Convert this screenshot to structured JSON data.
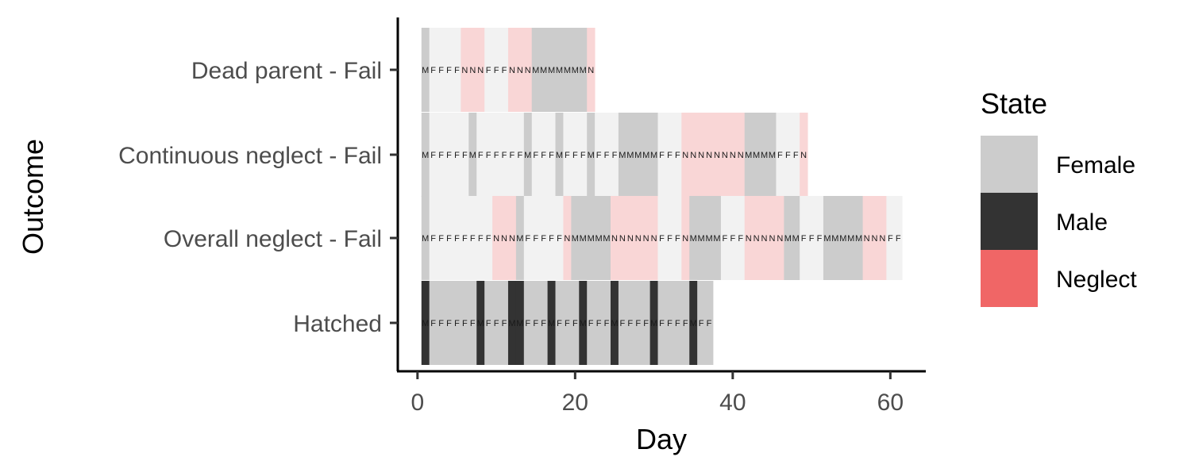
{
  "chart_data": {
    "type": "heatmap",
    "xlabel": "Day",
    "ylabel": "Outcome",
    "xlim": [
      -2.5,
      64.5
    ],
    "xticks": [
      0,
      20,
      40,
      60
    ],
    "categories": [
      "Dead parent - Fail",
      "Continuous neglect - Fail",
      "Overall neglect - Fail",
      "Hatched"
    ],
    "legend": {
      "title": "State",
      "position": "right",
      "entries": [
        {
          "label": "Female",
          "color": "#cccccc"
        },
        {
          "label": "Male",
          "color": "#333333"
        },
        {
          "label": "Neglect",
          "color": "#f06666"
        }
      ]
    },
    "grid": false,
    "series": [
      {
        "category": "Dead parent - Fail",
        "sequence": "MFFFFNNNFFFNNNMMMMMMMN"
      },
      {
        "category": "Continuous neglect - Fail",
        "sequence": "MFFFFFMFFFFFFMFFFMFFFMFFFMMMMMFFFNNNNNNNNMMMMFFFN"
      },
      {
        "category": "Overall neglect - Fail",
        "sequence": "MFFFFFFFFNNNMFFFFFNMMMMMNNNNNNFFFNMMMMFFFNNNNNMMFFFMMMMMNNNFF"
      },
      {
        "category": "Hatched",
        "sequence": "MFFFFFFMFFFMMFFFMFFFMFFFMFFFFMFFFFMFF"
      }
    ]
  }
}
